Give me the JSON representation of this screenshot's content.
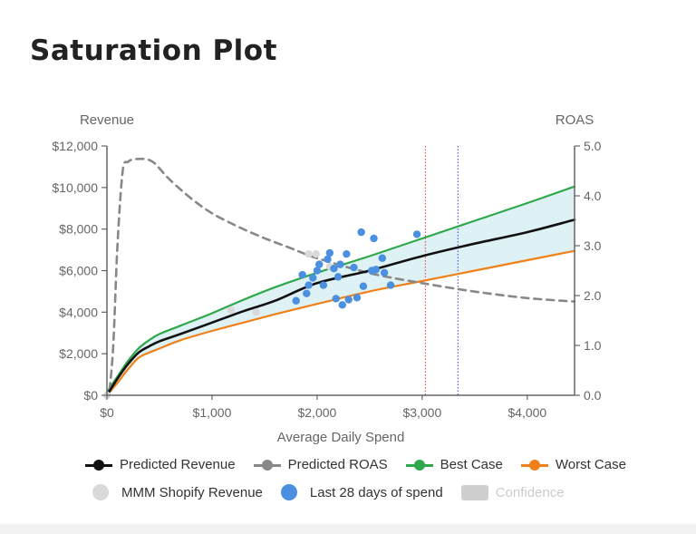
{
  "page": {
    "title": "Saturation Plot"
  },
  "chart_data": {
    "type": "line",
    "title": "Saturation Plot",
    "xlabel": "Average Daily Spend",
    "ylabel_left": "Revenue",
    "ylabel_right": "ROAS",
    "xlim": [
      0,
      4450
    ],
    "ylim_left": [
      0,
      12000
    ],
    "ylim_right": [
      0,
      5
    ],
    "x_ticks": [
      0,
      1000,
      2000,
      3000,
      4000
    ],
    "x_tick_labels": [
      "$0",
      "$1,000",
      "$2,000",
      "$3,000",
      "$4,000"
    ],
    "y_left_ticks": [
      0,
      2000,
      4000,
      6000,
      8000,
      10000,
      12000
    ],
    "y_left_tick_labels": [
      "$0",
      "$2,000",
      "$4,000",
      "$6,000",
      "$8,000",
      "$10,000",
      "$12,000"
    ],
    "y_right_ticks": [
      0,
      1,
      2,
      3,
      4,
      5
    ],
    "y_right_tick_labels": [
      "0.0",
      "1.0",
      "2.0",
      "3.0",
      "4.0",
      "5.0"
    ],
    "vertical_lines": [
      {
        "x": 3030,
        "color": "#e53935",
        "style": "dotted"
      },
      {
        "x": 3340,
        "color": "#2e3df0",
        "style": "dotted"
      }
    ],
    "series": [
      {
        "name": "Predicted Revenue",
        "axis": "left",
        "color": "#111111",
        "style": "solid",
        "x": [
          0,
          100,
          200,
          300,
          400,
          500,
          700,
          1000,
          1300,
          1600,
          2000,
          2500,
          3000,
          3500,
          4000,
          4450
        ],
        "y": [
          0,
          800,
          1500,
          2050,
          2350,
          2600,
          2950,
          3500,
          4050,
          4550,
          5400,
          6000,
          6700,
          7300,
          7850,
          8450
        ]
      },
      {
        "name": "Predicted ROAS",
        "axis": "right",
        "color": "#888888",
        "style": "dashed",
        "x": [
          25,
          60,
          100,
          150,
          200,
          250,
          300,
          350,
          400,
          450,
          500,
          600,
          800,
          1000,
          1250,
          1500,
          1750,
          2000,
          2500,
          3000,
          3500,
          4000,
          4450
        ],
        "y": [
          0.1,
          1.0,
          3.0,
          4.5,
          4.68,
          4.73,
          4.74,
          4.74,
          4.72,
          4.66,
          4.55,
          4.32,
          3.95,
          3.65,
          3.38,
          3.15,
          2.95,
          2.75,
          2.45,
          2.25,
          2.08,
          1.95,
          1.88
        ]
      },
      {
        "name": "Best Case",
        "axis": "left",
        "color": "#2ea84a",
        "style": "solid",
        "x": [
          0,
          100,
          200,
          300,
          400,
          500,
          700,
          1000,
          1300,
          1600,
          2000,
          2500,
          3000,
          3500,
          4000,
          4450
        ],
        "y": [
          150,
          900,
          1650,
          2250,
          2650,
          2950,
          3350,
          3950,
          4600,
          5200,
          5900,
          6700,
          7550,
          8400,
          9250,
          10050
        ]
      },
      {
        "name": "Worst Case",
        "axis": "left",
        "color": "#f08018",
        "style": "solid",
        "x": [
          0,
          100,
          200,
          300,
          400,
          500,
          700,
          1000,
          1300,
          1600,
          2000,
          2500,
          3000,
          3500,
          4000,
          4450
        ],
        "y": [
          0,
          600,
          1250,
          1800,
          2050,
          2250,
          2650,
          3100,
          3500,
          3900,
          4400,
          5000,
          5500,
          6000,
          6500,
          6950
        ]
      }
    ],
    "scatter": [
      {
        "name": "MMM Shopify Revenue",
        "color": "#d9d9d9",
        "x": [
          0,
          1180,
          1420,
          1920,
          1990,
          2020,
          2120
        ],
        "y": [
          0,
          4100,
          4000,
          6800,
          6800,
          6300,
          6200
        ]
      },
      {
        "name": "Last 28 days of spend",
        "color": "#4a8fe0",
        "x": [
          1800,
          1860,
          1900,
          1920,
          1960,
          2000,
          2020,
          2060,
          2100,
          2120,
          2160,
          2180,
          2200,
          2220,
          2240,
          2280,
          2300,
          2350,
          2380,
          2420,
          2440,
          2520,
          2540,
          2560,
          2620,
          2640,
          2700,
          2950
        ],
        "y": [
          4550,
          5800,
          4900,
          5300,
          5650,
          6000,
          6300,
          5300,
          6550,
          6850,
          6100,
          4650,
          5700,
          6300,
          4350,
          6800,
          4600,
          6150,
          4700,
          7850,
          5250,
          6000,
          7550,
          6050,
          6600,
          5900,
          5300,
          7750
        ]
      }
    ],
    "confidence_band": {
      "name": "Confidence",
      "color": "#d6edf2",
      "between": [
        "Worst Case",
        "Best Case"
      ]
    },
    "legend": {
      "position": "bottom",
      "row1": [
        {
          "label": "Predicted Revenue",
          "kind": "line",
          "color": "#111111"
        },
        {
          "label": "Predicted ROAS",
          "kind": "line",
          "color": "#888888"
        },
        {
          "label": "Best Case",
          "kind": "line",
          "color": "#2ea84a"
        },
        {
          "label": "Worst Case",
          "kind": "line",
          "color": "#f08018"
        }
      ],
      "row2": [
        {
          "label": "MMM Shopify Revenue",
          "kind": "circle",
          "color": "#d9d9d9"
        },
        {
          "label": "Last 28 days of spend",
          "kind": "circle",
          "color": "#4a8fe0"
        },
        {
          "label": "Confidence",
          "kind": "rect",
          "color": "#cfcfcf",
          "muted": true
        }
      ]
    }
  }
}
